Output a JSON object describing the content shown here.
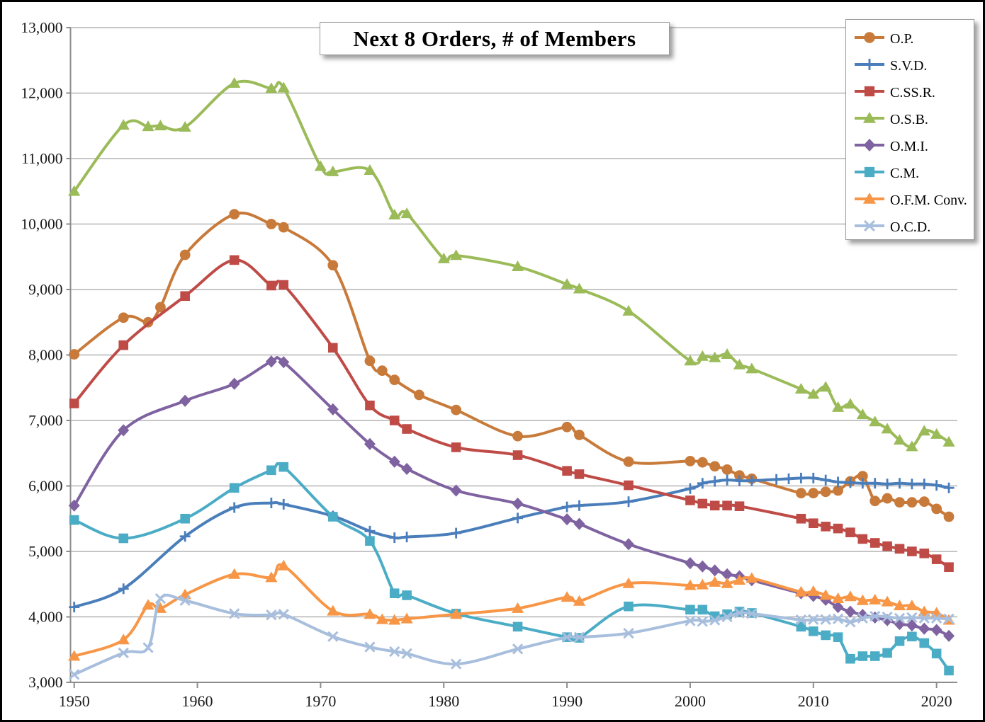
{
  "chart_data": {
    "type": "line",
    "title": "Next 8 Orders, # of Members",
    "xlabel": "",
    "ylabel": "",
    "grid": true,
    "legend_position": "right",
    "smoothed_lines": true,
    "y_min": 3000,
    "y_max": 13000,
    "y_step": 1000,
    "y_tick_labels": [
      "3,000",
      "4,000",
      "5,000",
      "6,000",
      "7,000",
      "8,000",
      "9,000",
      "10,000",
      "11,000",
      "12,000",
      "13,000"
    ],
    "x_tick_labels": [
      "1950",
      "1960",
      "1970",
      "1980",
      "1990",
      "2000",
      "2010",
      "2020"
    ],
    "x_ticks": [
      1950,
      1960,
      1970,
      1980,
      1990,
      2000,
      2010,
      2020
    ],
    "x_range": [
      1950,
      2021
    ],
    "colors": {
      "grid": "#a3a3a3",
      "axis": "#8c8c8c",
      "text": "#1a1a1a"
    },
    "series": [
      {
        "name": "O.P.",
        "marker": "circle",
        "color": "#c87a3a",
        "points": [
          [
            1950,
            8010
          ],
          [
            1954,
            8570
          ],
          [
            1956,
            8500
          ],
          [
            1957,
            8730
          ],
          [
            1959,
            9530
          ],
          [
            1963,
            10150
          ],
          [
            1966,
            10000
          ],
          [
            1967,
            9950
          ],
          [
            1971,
            9370
          ],
          [
            1974,
            7910
          ],
          [
            1975,
            7760
          ],
          [
            1976,
            7620
          ],
          [
            1978,
            7390
          ],
          [
            1981,
            7160
          ],
          [
            1986,
            6760
          ],
          [
            1990,
            6900
          ],
          [
            1991,
            6780
          ],
          [
            1995,
            6370
          ],
          [
            2000,
            6380
          ],
          [
            2001,
            6360
          ],
          [
            2002,
            6300
          ],
          [
            2003,
            6250
          ],
          [
            2004,
            6160
          ],
          [
            2005,
            6110
          ],
          [
            2009,
            5890
          ],
          [
            2010,
            5890
          ],
          [
            2011,
            5910
          ],
          [
            2012,
            5930
          ],
          [
            2013,
            6070
          ],
          [
            2014,
            6150
          ],
          [
            2015,
            5770
          ],
          [
            2016,
            5810
          ],
          [
            2017,
            5750
          ],
          [
            2018,
            5750
          ],
          [
            2019,
            5760
          ],
          [
            2020,
            5650
          ],
          [
            2021,
            5530
          ]
        ]
      },
      {
        "name": "S.V.D.",
        "marker": "plus",
        "color": "#4a7ebb",
        "points": [
          [
            1950,
            4150
          ],
          [
            1954,
            4430
          ],
          [
            1959,
            5230
          ],
          [
            1963,
            5670
          ],
          [
            1966,
            5740
          ],
          [
            1967,
            5720
          ],
          [
            1971,
            5540
          ],
          [
            1974,
            5310
          ],
          [
            1976,
            5210
          ],
          [
            1977,
            5220
          ],
          [
            1981,
            5280
          ],
          [
            1986,
            5510
          ],
          [
            1990,
            5680
          ],
          [
            1991,
            5700
          ],
          [
            1995,
            5760
          ],
          [
            2000,
            5960
          ],
          [
            2001,
            6040
          ],
          [
            2002,
            6070
          ],
          [
            2003,
            6090
          ],
          [
            2004,
            6080
          ],
          [
            2005,
            6080
          ],
          [
            2007,
            6100
          ],
          [
            2008,
            6110
          ],
          [
            2009,
            6120
          ],
          [
            2010,
            6120
          ],
          [
            2011,
            6090
          ],
          [
            2012,
            6060
          ],
          [
            2013,
            6050
          ],
          [
            2014,
            6040
          ],
          [
            2015,
            6040
          ],
          [
            2016,
            6030
          ],
          [
            2017,
            6040
          ],
          [
            2018,
            6030
          ],
          [
            2019,
            6030
          ],
          [
            2020,
            6010
          ],
          [
            2021,
            5970
          ]
        ]
      },
      {
        "name": "C.SS.R.",
        "marker": "square",
        "color": "#bf4b47",
        "points": [
          [
            1950,
            7260
          ],
          [
            1954,
            8150
          ],
          [
            1959,
            8900
          ],
          [
            1963,
            9450
          ],
          [
            1966,
            9060
          ],
          [
            1967,
            9070
          ],
          [
            1971,
            8110
          ],
          [
            1974,
            7230
          ],
          [
            1976,
            7000
          ],
          [
            1977,
            6870
          ],
          [
            1981,
            6590
          ],
          [
            1986,
            6470
          ],
          [
            1990,
            6230
          ],
          [
            1991,
            6180
          ],
          [
            1995,
            6010
          ],
          [
            2000,
            5780
          ],
          [
            2001,
            5730
          ],
          [
            2002,
            5700
          ],
          [
            2003,
            5700
          ],
          [
            2004,
            5690
          ],
          [
            2009,
            5500
          ],
          [
            2010,
            5430
          ],
          [
            2011,
            5380
          ],
          [
            2012,
            5350
          ],
          [
            2013,
            5290
          ],
          [
            2014,
            5190
          ],
          [
            2015,
            5130
          ],
          [
            2016,
            5080
          ],
          [
            2017,
            5040
          ],
          [
            2018,
            5000
          ],
          [
            2019,
            4970
          ],
          [
            2020,
            4880
          ],
          [
            2021,
            4760
          ]
        ]
      },
      {
        "name": "O.S.B.",
        "marker": "triangle",
        "color": "#9bbb59",
        "points": [
          [
            1950,
            10500
          ],
          [
            1954,
            11510
          ],
          [
            1956,
            11490
          ],
          [
            1957,
            11500
          ],
          [
            1959,
            11480
          ],
          [
            1963,
            12150
          ],
          [
            1966,
            12070
          ],
          [
            1967,
            12080
          ],
          [
            1970,
            10880
          ],
          [
            1971,
            10800
          ],
          [
            1974,
            10820
          ],
          [
            1976,
            10140
          ],
          [
            1977,
            10160
          ],
          [
            1980,
            9470
          ],
          [
            1981,
            9520
          ],
          [
            1986,
            9350
          ],
          [
            1990,
            9080
          ],
          [
            1991,
            9010
          ],
          [
            1995,
            8670
          ],
          [
            2000,
            7910
          ],
          [
            2001,
            7980
          ],
          [
            2002,
            7960
          ],
          [
            2003,
            8010
          ],
          [
            2004,
            7850
          ],
          [
            2005,
            7790
          ],
          [
            2009,
            7480
          ],
          [
            2010,
            7400
          ],
          [
            2011,
            7510
          ],
          [
            2012,
            7200
          ],
          [
            2013,
            7250
          ],
          [
            2014,
            7090
          ],
          [
            2015,
            6980
          ],
          [
            2016,
            6870
          ],
          [
            2017,
            6700
          ],
          [
            2018,
            6600
          ],
          [
            2019,
            6840
          ],
          [
            2020,
            6790
          ],
          [
            2021,
            6670
          ]
        ]
      },
      {
        "name": "O.M.I.",
        "marker": "diamond",
        "color": "#7f63a1",
        "points": [
          [
            1950,
            5700
          ],
          [
            1954,
            6850
          ],
          [
            1959,
            7300
          ],
          [
            1963,
            7560
          ],
          [
            1966,
            7900
          ],
          [
            1967,
            7890
          ],
          [
            1971,
            7170
          ],
          [
            1974,
            6640
          ],
          [
            1976,
            6370
          ],
          [
            1977,
            6260
          ],
          [
            1981,
            5930
          ],
          [
            1986,
            5730
          ],
          [
            1990,
            5490
          ],
          [
            1991,
            5420
          ],
          [
            1995,
            5110
          ],
          [
            2000,
            4820
          ],
          [
            2001,
            4770
          ],
          [
            2002,
            4710
          ],
          [
            2003,
            4650
          ],
          [
            2004,
            4620
          ],
          [
            2005,
            4560
          ],
          [
            2009,
            4360
          ],
          [
            2010,
            4320
          ],
          [
            2011,
            4260
          ],
          [
            2012,
            4150
          ],
          [
            2013,
            4080
          ],
          [
            2014,
            4030
          ],
          [
            2015,
            3990
          ],
          [
            2016,
            3950
          ],
          [
            2017,
            3890
          ],
          [
            2018,
            3870
          ],
          [
            2019,
            3820
          ],
          [
            2020,
            3800
          ],
          [
            2021,
            3710
          ]
        ]
      },
      {
        "name": "C.M.",
        "marker": "square",
        "color": "#4bacc6",
        "points": [
          [
            1950,
            5480
          ],
          [
            1954,
            5200
          ],
          [
            1959,
            5500
          ],
          [
            1963,
            5970
          ],
          [
            1966,
            6240
          ],
          [
            1967,
            6290
          ],
          [
            1971,
            5530
          ],
          [
            1974,
            5160
          ],
          [
            1976,
            4360
          ],
          [
            1977,
            4330
          ],
          [
            1981,
            4050
          ],
          [
            1986,
            3850
          ],
          [
            1990,
            3690
          ],
          [
            1991,
            3680
          ],
          [
            1995,
            4160
          ],
          [
            2000,
            4110
          ],
          [
            2001,
            4110
          ],
          [
            2002,
            4010
          ],
          [
            2003,
            4040
          ],
          [
            2004,
            4080
          ],
          [
            2005,
            4060
          ],
          [
            2009,
            3850
          ],
          [
            2010,
            3780
          ],
          [
            2011,
            3720
          ],
          [
            2012,
            3690
          ],
          [
            2013,
            3360
          ],
          [
            2014,
            3400
          ],
          [
            2015,
            3400
          ],
          [
            2016,
            3450
          ],
          [
            2017,
            3630
          ],
          [
            2018,
            3700
          ],
          [
            2019,
            3600
          ],
          [
            2020,
            3440
          ],
          [
            2021,
            3180
          ]
        ]
      },
      {
        "name": "O.F.M. Conv.",
        "marker": "triangle",
        "color": "#f79646",
        "points": [
          [
            1950,
            3400
          ],
          [
            1954,
            3650
          ],
          [
            1956,
            4180
          ],
          [
            1957,
            4130
          ],
          [
            1959,
            4340
          ],
          [
            1963,
            4650
          ],
          [
            1966,
            4600
          ],
          [
            1967,
            4780
          ],
          [
            1971,
            4090
          ],
          [
            1974,
            4040
          ],
          [
            1975,
            3960
          ],
          [
            1976,
            3950
          ],
          [
            1977,
            3970
          ],
          [
            1981,
            4040
          ],
          [
            1986,
            4130
          ],
          [
            1990,
            4300
          ],
          [
            1991,
            4240
          ],
          [
            1995,
            4510
          ],
          [
            2000,
            4480
          ],
          [
            2001,
            4490
          ],
          [
            2002,
            4530
          ],
          [
            2003,
            4510
          ],
          [
            2004,
            4560
          ],
          [
            2005,
            4590
          ],
          [
            2009,
            4380
          ],
          [
            2010,
            4390
          ],
          [
            2011,
            4330
          ],
          [
            2012,
            4280
          ],
          [
            2013,
            4310
          ],
          [
            2014,
            4250
          ],
          [
            2015,
            4260
          ],
          [
            2016,
            4230
          ],
          [
            2017,
            4170
          ],
          [
            2018,
            4170
          ],
          [
            2019,
            4080
          ],
          [
            2020,
            4060
          ],
          [
            2021,
            3950
          ]
        ]
      },
      {
        "name": "O.C.D.",
        "marker": "x",
        "color": "#a8bedd",
        "points": [
          [
            1950,
            3120
          ],
          [
            1954,
            3450
          ],
          [
            1956,
            3530
          ],
          [
            1957,
            4280
          ],
          [
            1959,
            4250
          ],
          [
            1963,
            4050
          ],
          [
            1966,
            4030
          ],
          [
            1967,
            4040
          ],
          [
            1971,
            3700
          ],
          [
            1974,
            3540
          ],
          [
            1976,
            3470
          ],
          [
            1977,
            3440
          ],
          [
            1981,
            3280
          ],
          [
            1986,
            3510
          ],
          [
            1990,
            3690
          ],
          [
            1991,
            3690
          ],
          [
            1995,
            3750
          ],
          [
            2000,
            3940
          ],
          [
            2001,
            3930
          ],
          [
            2002,
            3950
          ],
          [
            2003,
            4000
          ],
          [
            2004,
            4060
          ],
          [
            2005,
            4050
          ],
          [
            2009,
            3955
          ],
          [
            2010,
            3960
          ],
          [
            2011,
            3960
          ],
          [
            2012,
            3970
          ],
          [
            2013,
            3920
          ],
          [
            2014,
            3980
          ],
          [
            2015,
            4010
          ],
          [
            2016,
            4000
          ],
          [
            2017,
            3980
          ],
          [
            2018,
            3990
          ],
          [
            2019,
            3980
          ],
          [
            2020,
            3980
          ],
          [
            2021,
            3970
          ]
        ]
      }
    ]
  }
}
